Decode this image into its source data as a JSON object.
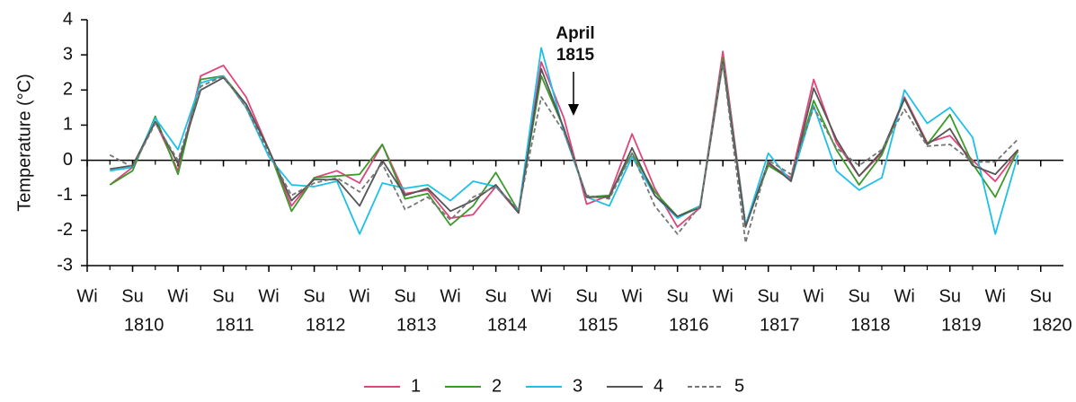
{
  "chart_data": {
    "type": "line",
    "y_label": "Temperature (°C)",
    "annotation": [
      "April",
      "1815"
    ],
    "x": [
      1,
      2,
      3,
      4,
      5,
      6,
      7,
      8,
      9,
      10,
      11,
      12,
      13,
      14,
      15,
      16,
      17,
      18,
      19,
      20,
      21,
      22,
      23,
      24,
      25,
      26,
      27,
      28,
      29,
      30,
      31,
      32,
      33,
      34,
      35,
      36,
      37,
      38,
      39,
      40,
      41
    ],
    "series": [
      {
        "name": "1",
        "color": "#e0457b",
        "dashed": false,
        "values": [
          -0.7,
          -0.2,
          1.1,
          -0.3,
          2.4,
          2.7,
          1.8,
          0.3,
          -1.3,
          -0.5,
          -0.3,
          -0.65,
          0.45,
          -0.95,
          -0.85,
          -1.65,
          -1.55,
          -0.75,
          -1.5,
          2.8,
          1.2,
          -1.25,
          -1.0,
          0.75,
          -0.8,
          -1.9,
          -1.35,
          3.1,
          -1.85,
          -0.1,
          -0.5,
          2.3,
          0.5,
          -0.45,
          0.2,
          1.8,
          0.5,
          0.7,
          0.0,
          -0.6,
          0.25
        ]
      },
      {
        "name": "2",
        "color": "#3a9a2a",
        "dashed": false,
        "values": [
          -0.7,
          -0.3,
          1.25,
          -0.4,
          2.3,
          2.4,
          1.6,
          0.3,
          -1.45,
          -0.5,
          -0.45,
          -0.4,
          0.45,
          -1.1,
          -0.95,
          -1.85,
          -1.3,
          -0.35,
          -1.45,
          2.4,
          0.9,
          -1.05,
          -1.0,
          0.2,
          -0.9,
          -1.6,
          -1.3,
          2.9,
          -1.85,
          -0.15,
          -0.55,
          1.7,
          0.3,
          -0.7,
          0.15,
          1.75,
          0.45,
          1.3,
          -0.1,
          -1.05,
          0.3
        ]
      },
      {
        "name": "3",
        "color": "#1ec0e8",
        "dashed": false,
        "values": [
          -0.3,
          -0.2,
          1.2,
          0.3,
          2.2,
          2.4,
          1.5,
          0.1,
          -0.7,
          -0.75,
          -0.6,
          -2.1,
          -0.65,
          -0.8,
          -0.7,
          -1.15,
          -0.6,
          -0.75,
          -1.45,
          3.2,
          0.8,
          -1.05,
          -1.3,
          0.1,
          -1.0,
          -1.65,
          -1.3,
          2.8,
          -1.85,
          0.2,
          -0.6,
          1.55,
          -0.3,
          -0.85,
          -0.5,
          2.0,
          1.05,
          1.5,
          0.65,
          -2.1,
          0.15
        ]
      },
      {
        "name": "4",
        "color": "#555555",
        "dashed": false,
        "values": [
          -0.25,
          -0.15,
          1.1,
          -0.1,
          2.0,
          2.35,
          1.6,
          0.3,
          -1.15,
          -0.55,
          -0.55,
          -1.3,
          0.0,
          -1.0,
          -0.8,
          -1.45,
          -1.15,
          -0.7,
          -1.5,
          2.6,
          0.9,
          -1.05,
          -1.05,
          0.35,
          -1.0,
          -1.6,
          -1.35,
          2.8,
          -1.9,
          -0.05,
          -0.6,
          2.05,
          0.6,
          -0.45,
          0.25,
          1.75,
          0.45,
          0.9,
          -0.15,
          -0.4,
          0.3
        ]
      },
      {
        "name": "5",
        "color": "#777777",
        "dashed": true,
        "values": [
          0.15,
          -0.2,
          1.05,
          0.0,
          2.1,
          2.4,
          1.5,
          0.2,
          -1.0,
          -0.65,
          -0.5,
          -0.9,
          -0.1,
          -1.4,
          -1.05,
          -1.7,
          -1.05,
          -0.75,
          -1.4,
          1.8,
          0.8,
          -1.0,
          -1.1,
          0.2,
          -1.3,
          -2.1,
          -1.3,
          2.75,
          -2.35,
          0.0,
          -0.4,
          1.5,
          0.35,
          -0.15,
          0.3,
          1.45,
          0.4,
          0.45,
          -0.05,
          -0.05,
          0.6
        ]
      }
    ],
    "xlim": [
      0,
      43
    ],
    "xticks": [
      {
        "value": 0,
        "label": "Wi"
      },
      {
        "value": 2,
        "label": "Su"
      },
      {
        "value": 4,
        "label": "Wi"
      },
      {
        "value": 6,
        "label": "Su"
      },
      {
        "value": 8,
        "label": "Wi"
      },
      {
        "value": 10,
        "label": "Su"
      },
      {
        "value": 12,
        "label": "Wi"
      },
      {
        "value": 14,
        "label": "Su"
      },
      {
        "value": 16,
        "label": "Wi"
      },
      {
        "value": 18,
        "label": "Su"
      },
      {
        "value": 20,
        "label": "Wi"
      },
      {
        "value": 22,
        "label": "Su"
      },
      {
        "value": 24,
        "label": "Wi"
      },
      {
        "value": 26,
        "label": "Su"
      },
      {
        "value": 28,
        "label": "Wi"
      },
      {
        "value": 30,
        "label": "Su"
      },
      {
        "value": 32,
        "label": "Wi"
      },
      {
        "value": 34,
        "label": "Su"
      },
      {
        "value": 36,
        "label": "Wi"
      },
      {
        "value": 38,
        "label": "Su"
      },
      {
        "value": 40,
        "label": "Wi"
      },
      {
        "value": 42,
        "label": "Su"
      }
    ],
    "year_ticks": [
      {
        "value": 2.5,
        "label": "1810"
      },
      {
        "value": 6.5,
        "label": "1811"
      },
      {
        "value": 10.5,
        "label": "1812"
      },
      {
        "value": 14.5,
        "label": "1813"
      },
      {
        "value": 18.5,
        "label": "1814"
      },
      {
        "value": 22.5,
        "label": "1815"
      },
      {
        "value": 26.5,
        "label": "1816"
      },
      {
        "value": 30.5,
        "label": "1817"
      },
      {
        "value": 34.5,
        "label": "1818"
      },
      {
        "value": 38.5,
        "label": "1819"
      },
      {
        "value": 42.5,
        "label": "1820"
      }
    ],
    "ylim": [
      -3,
      4
    ],
    "yticks": [
      -3,
      -2,
      -1,
      0,
      1,
      2,
      3,
      4
    ]
  }
}
